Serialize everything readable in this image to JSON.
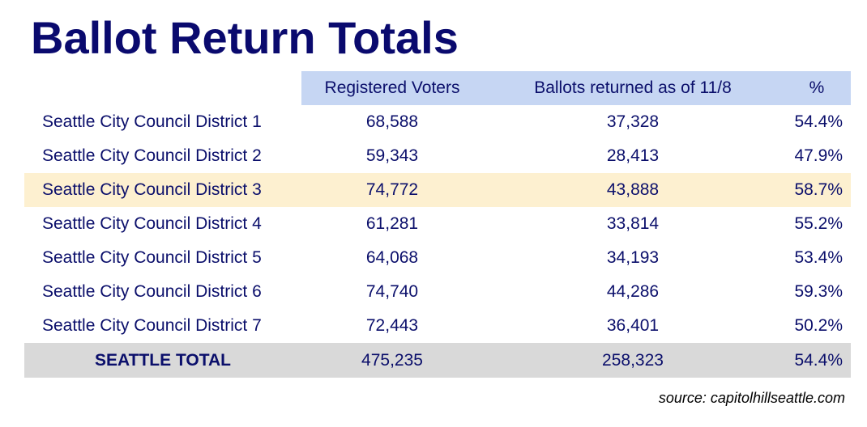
{
  "title": "Ballot Return Totals",
  "chart_data": {
    "type": "table",
    "columns": [
      "",
      "Registered Voters",
      "Ballots returned as of 11/8",
      "%"
    ],
    "rows": [
      {
        "name": "Seattle City Council District 1",
        "registered": "68,588",
        "returned": "37,328",
        "pct": "54.4%"
      },
      {
        "name": "Seattle City Council District 2",
        "registered": "59,343",
        "returned": "28,413",
        "pct": "47.9%"
      },
      {
        "name": "Seattle City Council District 3",
        "registered": "74,772",
        "returned": "43,888",
        "pct": "58.7%",
        "highlight": true
      },
      {
        "name": "Seattle City Council District 4",
        "registered": "61,281",
        "returned": "33,814",
        "pct": "55.2%"
      },
      {
        "name": "Seattle City Council District 5",
        "registered": "64,068",
        "returned": "34,193",
        "pct": "53.4%"
      },
      {
        "name": "Seattle City Council District 6",
        "registered": "74,740",
        "returned": "44,286",
        "pct": "59.3%"
      },
      {
        "name": "Seattle City Council District 7",
        "registered": "72,443",
        "returned": "36,401",
        "pct": "50.2%"
      }
    ],
    "total": {
      "name": "SEATTLE TOTAL",
      "registered": "475,235",
      "returned": "258,323",
      "pct": "54.4%"
    }
  },
  "source": "source: capitolhillseattle.com",
  "colors": {
    "title": "#0a0a6e",
    "text": "#0b0f6b",
    "header_fill": "#c6d6f3",
    "highlight_fill": "#fdf0d0",
    "total_fill": "#d9d9d9"
  }
}
